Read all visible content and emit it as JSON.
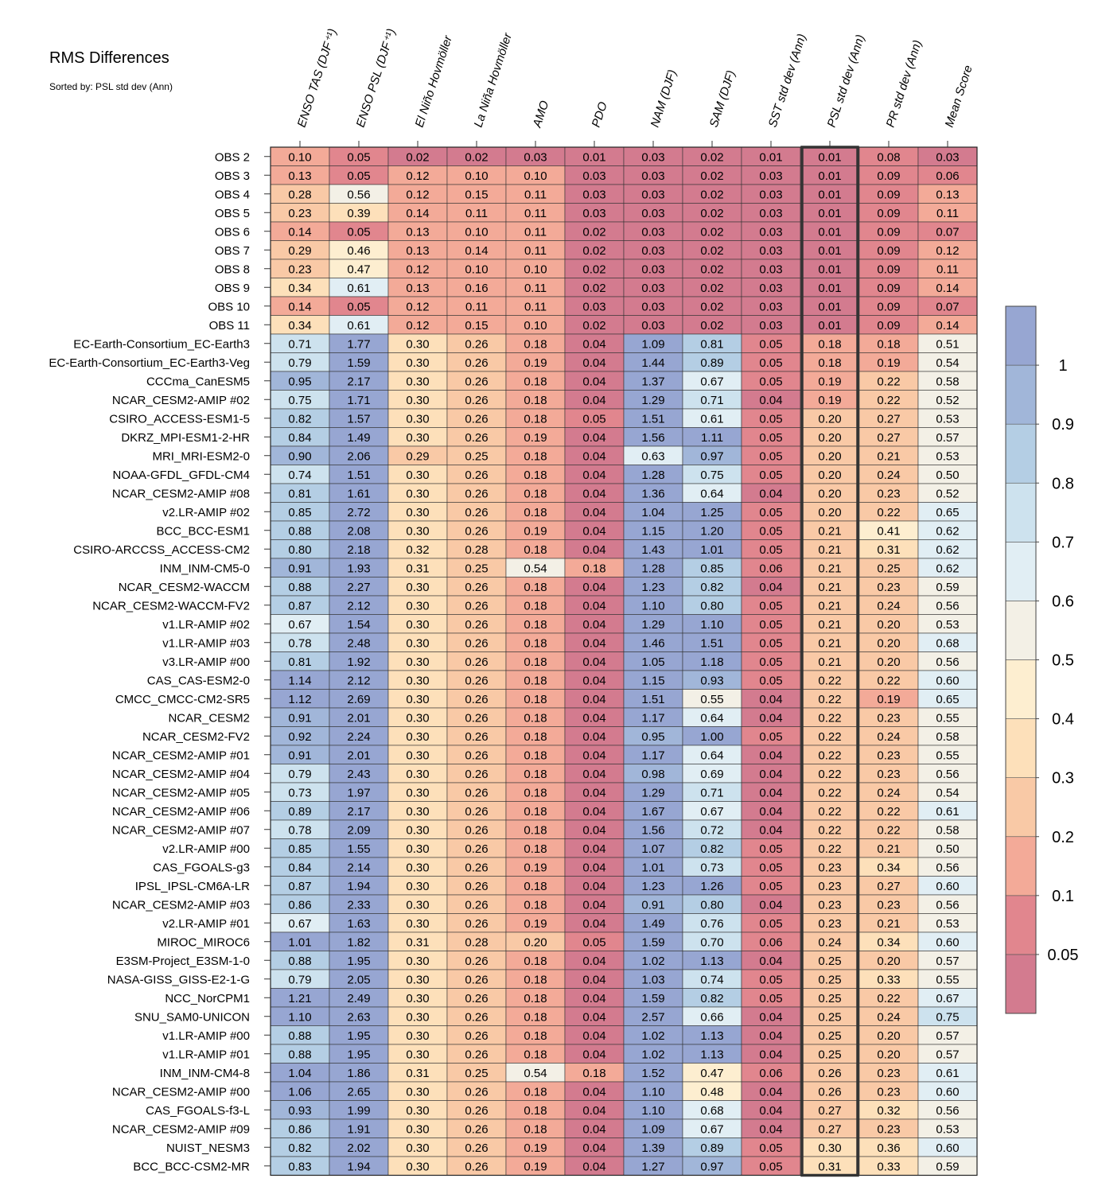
{
  "chart_data": {
    "type": "heatmap",
    "title": "RMS Differences",
    "subtitle": "Sorted by: PSL std dev (Ann)",
    "columns": [
      "ENSO TAS (DJF⁺¹)",
      "ENSO PSL (DJF⁺¹)",
      "El Niño Hovmöller",
      "La Niña Hovmöller",
      "AMO",
      "PDO",
      "NAM (DJF)",
      "SAM (DJF)",
      "SST std dev (Ann)",
      "PSL std dev (Ann)",
      "PR std dev (Ann)",
      "Mean Score"
    ],
    "highlighted_column": "PSL std dev (Ann)",
    "rows": [
      {
        "label": "OBS 2",
        "values": [
          0.1,
          0.05,
          0.02,
          0.02,
          0.03,
          0.01,
          0.03,
          0.02,
          0.01,
          0.01,
          0.08,
          0.03
        ]
      },
      {
        "label": "OBS 3",
        "values": [
          0.13,
          0.05,
          0.12,
          0.1,
          0.1,
          0.03,
          0.03,
          0.02,
          0.03,
          0.01,
          0.09,
          0.06
        ]
      },
      {
        "label": "OBS 4",
        "values": [
          0.28,
          0.56,
          0.12,
          0.15,
          0.11,
          0.03,
          0.03,
          0.02,
          0.03,
          0.01,
          0.09,
          0.13
        ]
      },
      {
        "label": "OBS 5",
        "values": [
          0.23,
          0.39,
          0.14,
          0.11,
          0.11,
          0.03,
          0.03,
          0.02,
          0.03,
          0.01,
          0.09,
          0.11
        ]
      },
      {
        "label": "OBS 6",
        "values": [
          0.14,
          0.05,
          0.13,
          0.1,
          0.11,
          0.02,
          0.03,
          0.02,
          0.03,
          0.01,
          0.09,
          0.07
        ]
      },
      {
        "label": "OBS 7",
        "values": [
          0.29,
          0.46,
          0.13,
          0.14,
          0.11,
          0.02,
          0.03,
          0.02,
          0.03,
          0.01,
          0.09,
          0.12
        ]
      },
      {
        "label": "OBS 8",
        "values": [
          0.23,
          0.47,
          0.12,
          0.1,
          0.1,
          0.02,
          0.03,
          0.02,
          0.03,
          0.01,
          0.09,
          0.11
        ]
      },
      {
        "label": "OBS 9",
        "values": [
          0.34,
          0.61,
          0.13,
          0.16,
          0.11,
          0.02,
          0.03,
          0.02,
          0.03,
          0.01,
          0.09,
          0.14
        ]
      },
      {
        "label": "OBS 10",
        "values": [
          0.14,
          0.05,
          0.12,
          0.11,
          0.11,
          0.03,
          0.03,
          0.02,
          0.03,
          0.01,
          0.09,
          0.07
        ]
      },
      {
        "label": "OBS 11",
        "values": [
          0.34,
          0.61,
          0.12,
          0.15,
          0.1,
          0.02,
          0.03,
          0.02,
          0.03,
          0.01,
          0.09,
          0.14
        ]
      },
      {
        "label": "EC-Earth-Consortium_EC-Earth3",
        "values": [
          0.71,
          1.77,
          0.3,
          0.26,
          0.18,
          0.04,
          1.09,
          0.81,
          0.05,
          0.18,
          0.18,
          0.51
        ]
      },
      {
        "label": "EC-Earth-Consortium_EC-Earth3-Veg",
        "values": [
          0.79,
          1.59,
          0.3,
          0.26,
          0.19,
          0.04,
          1.44,
          0.89,
          0.05,
          0.18,
          0.19,
          0.54
        ]
      },
      {
        "label": "CCCma_CanESM5",
        "values": [
          0.95,
          2.17,
          0.3,
          0.26,
          0.18,
          0.04,
          1.37,
          0.67,
          0.05,
          0.19,
          0.22,
          0.58
        ]
      },
      {
        "label": "NCAR_CESM2-AMIP  #02",
        "values": [
          0.75,
          1.71,
          0.3,
          0.26,
          0.18,
          0.04,
          1.29,
          0.71,
          0.04,
          0.19,
          0.22,
          0.52
        ]
      },
      {
        "label": "CSIRO_ACCESS-ESM1-5",
        "values": [
          0.82,
          1.57,
          0.3,
          0.26,
          0.18,
          0.05,
          1.51,
          0.61,
          0.05,
          0.2,
          0.27,
          0.53
        ]
      },
      {
        "label": "DKRZ_MPI-ESM1-2-HR",
        "values": [
          0.84,
          1.49,
          0.3,
          0.26,
          0.19,
          0.04,
          1.56,
          1.11,
          0.05,
          0.2,
          0.27,
          0.57
        ]
      },
      {
        "label": "MRI_MRI-ESM2-0",
        "values": [
          0.9,
          2.06,
          0.29,
          0.25,
          0.18,
          0.04,
          0.63,
          0.97,
          0.05,
          0.2,
          0.21,
          0.53
        ]
      },
      {
        "label": "NOAA-GFDL_GFDL-CM4",
        "values": [
          0.74,
          1.51,
          0.3,
          0.26,
          0.18,
          0.04,
          1.28,
          0.75,
          0.05,
          0.2,
          0.24,
          0.5
        ]
      },
      {
        "label": "NCAR_CESM2-AMIP  #08",
        "values": [
          0.81,
          1.61,
          0.3,
          0.26,
          0.18,
          0.04,
          1.36,
          0.64,
          0.04,
          0.2,
          0.23,
          0.52
        ]
      },
      {
        "label": "v2.LR-AMIP  #02",
        "values": [
          0.85,
          2.72,
          0.3,
          0.26,
          0.18,
          0.04,
          1.04,
          1.25,
          0.05,
          0.2,
          0.22,
          0.65
        ]
      },
      {
        "label": "BCC_BCC-ESM1",
        "values": [
          0.88,
          2.08,
          0.3,
          0.26,
          0.19,
          0.04,
          1.15,
          1.2,
          0.05,
          0.21,
          0.41,
          0.62
        ]
      },
      {
        "label": "CSIRO-ARCCSS_ACCESS-CM2",
        "values": [
          0.8,
          2.18,
          0.32,
          0.28,
          0.18,
          0.04,
          1.43,
          1.01,
          0.05,
          0.21,
          0.31,
          0.62
        ]
      },
      {
        "label": "INM_INM-CM5-0",
        "values": [
          0.91,
          1.93,
          0.31,
          0.25,
          0.54,
          0.18,
          1.28,
          0.85,
          0.06,
          0.21,
          0.25,
          0.62
        ]
      },
      {
        "label": "NCAR_CESM2-WACCM",
        "values": [
          0.88,
          2.27,
          0.3,
          0.26,
          0.18,
          0.04,
          1.23,
          0.82,
          0.04,
          0.21,
          0.23,
          0.59
        ]
      },
      {
        "label": "NCAR_CESM2-WACCM-FV2",
        "values": [
          0.87,
          2.12,
          0.3,
          0.26,
          0.18,
          0.04,
          1.1,
          0.8,
          0.05,
          0.21,
          0.24,
          0.56
        ]
      },
      {
        "label": "v1.LR-AMIP  #02",
        "values": [
          0.67,
          1.54,
          0.3,
          0.26,
          0.18,
          0.04,
          1.29,
          1.1,
          0.05,
          0.21,
          0.2,
          0.53
        ]
      },
      {
        "label": "v1.LR-AMIP  #03",
        "values": [
          0.78,
          2.48,
          0.3,
          0.26,
          0.18,
          0.04,
          1.46,
          1.51,
          0.05,
          0.21,
          0.2,
          0.68
        ]
      },
      {
        "label": "v3.LR-AMIP  #00",
        "values": [
          0.81,
          1.92,
          0.3,
          0.26,
          0.18,
          0.04,
          1.05,
          1.18,
          0.05,
          0.21,
          0.2,
          0.56
        ]
      },
      {
        "label": "CAS_CAS-ESM2-0",
        "values": [
          1.14,
          2.12,
          0.3,
          0.26,
          0.18,
          0.04,
          1.15,
          0.93,
          0.05,
          0.22,
          0.22,
          0.6
        ]
      },
      {
        "label": "CMCC_CMCC-CM2-SR5",
        "values": [
          1.12,
          2.69,
          0.3,
          0.26,
          0.18,
          0.04,
          1.51,
          0.55,
          0.04,
          0.22,
          0.19,
          0.65
        ]
      },
      {
        "label": "NCAR_CESM2",
        "values": [
          0.91,
          2.01,
          0.3,
          0.26,
          0.18,
          0.04,
          1.17,
          0.64,
          0.04,
          0.22,
          0.23,
          0.55
        ]
      },
      {
        "label": "NCAR_CESM2-FV2",
        "values": [
          0.92,
          2.24,
          0.3,
          0.26,
          0.18,
          0.04,
          0.95,
          1.0,
          0.05,
          0.22,
          0.24,
          0.58
        ]
      },
      {
        "label": "NCAR_CESM2-AMIP  #01",
        "values": [
          0.91,
          2.01,
          0.3,
          0.26,
          0.18,
          0.04,
          1.17,
          0.64,
          0.04,
          0.22,
          0.23,
          0.55
        ]
      },
      {
        "label": "NCAR_CESM2-AMIP  #04",
        "values": [
          0.79,
          2.43,
          0.3,
          0.26,
          0.18,
          0.04,
          0.98,
          0.69,
          0.04,
          0.22,
          0.23,
          0.56
        ]
      },
      {
        "label": "NCAR_CESM2-AMIP  #05",
        "values": [
          0.73,
          1.97,
          0.3,
          0.26,
          0.18,
          0.04,
          1.29,
          0.71,
          0.04,
          0.22,
          0.24,
          0.54
        ]
      },
      {
        "label": "NCAR_CESM2-AMIP  #06",
        "values": [
          0.89,
          2.17,
          0.3,
          0.26,
          0.18,
          0.04,
          1.67,
          0.67,
          0.04,
          0.22,
          0.22,
          0.61
        ]
      },
      {
        "label": "NCAR_CESM2-AMIP  #07",
        "values": [
          0.78,
          2.09,
          0.3,
          0.26,
          0.18,
          0.04,
          1.56,
          0.72,
          0.04,
          0.22,
          0.22,
          0.58
        ]
      },
      {
        "label": "v2.LR-AMIP  #00",
        "values": [
          0.85,
          1.55,
          0.3,
          0.26,
          0.18,
          0.04,
          1.07,
          0.82,
          0.05,
          0.22,
          0.21,
          0.5
        ]
      },
      {
        "label": "CAS_FGOALS-g3",
        "values": [
          0.84,
          2.14,
          0.3,
          0.26,
          0.19,
          0.04,
          1.01,
          0.73,
          0.05,
          0.23,
          0.34,
          0.56
        ]
      },
      {
        "label": "IPSL_IPSL-CM6A-LR",
        "values": [
          0.87,
          1.94,
          0.3,
          0.26,
          0.18,
          0.04,
          1.23,
          1.26,
          0.05,
          0.23,
          0.27,
          0.6
        ]
      },
      {
        "label": "NCAR_CESM2-AMIP  #03",
        "values": [
          0.86,
          2.33,
          0.3,
          0.26,
          0.18,
          0.04,
          0.91,
          0.8,
          0.04,
          0.23,
          0.23,
          0.56
        ]
      },
      {
        "label": "v2.LR-AMIP  #01",
        "values": [
          0.67,
          1.63,
          0.3,
          0.26,
          0.19,
          0.04,
          1.49,
          0.76,
          0.05,
          0.23,
          0.21,
          0.53
        ]
      },
      {
        "label": "MIROC_MIROC6",
        "values": [
          1.01,
          1.82,
          0.31,
          0.28,
          0.2,
          0.05,
          1.59,
          0.7,
          0.06,
          0.24,
          0.34,
          0.6
        ]
      },
      {
        "label": "E3SM-Project_E3SM-1-0",
        "values": [
          0.88,
          1.95,
          0.3,
          0.26,
          0.18,
          0.04,
          1.02,
          1.13,
          0.04,
          0.25,
          0.2,
          0.57
        ]
      },
      {
        "label": "NASA-GISS_GISS-E2-1-G",
        "values": [
          0.79,
          2.05,
          0.3,
          0.26,
          0.18,
          0.04,
          1.03,
          0.74,
          0.05,
          0.25,
          0.33,
          0.55
        ]
      },
      {
        "label": "NCC_NorCPM1",
        "values": [
          1.21,
          2.49,
          0.3,
          0.26,
          0.18,
          0.04,
          1.59,
          0.82,
          0.05,
          0.25,
          0.22,
          0.67
        ]
      },
      {
        "label": "SNU_SAM0-UNICON",
        "values": [
          1.1,
          2.63,
          0.3,
          0.26,
          0.18,
          0.04,
          2.57,
          0.66,
          0.04,
          0.25,
          0.24,
          0.75
        ]
      },
      {
        "label": "v1.LR-AMIP  #00",
        "values": [
          0.88,
          1.95,
          0.3,
          0.26,
          0.18,
          0.04,
          1.02,
          1.13,
          0.04,
          0.25,
          0.2,
          0.57
        ]
      },
      {
        "label": "v1.LR-AMIP  #01",
        "values": [
          0.88,
          1.95,
          0.3,
          0.26,
          0.18,
          0.04,
          1.02,
          1.13,
          0.04,
          0.25,
          0.2,
          0.57
        ]
      },
      {
        "label": "INM_INM-CM4-8",
        "values": [
          1.04,
          1.86,
          0.31,
          0.25,
          0.54,
          0.18,
          1.52,
          0.47,
          0.06,
          0.26,
          0.23,
          0.61
        ]
      },
      {
        "label": "NCAR_CESM2-AMIP  #00",
        "values": [
          1.06,
          2.65,
          0.3,
          0.26,
          0.18,
          0.04,
          1.1,
          0.48,
          0.04,
          0.26,
          0.23,
          0.6
        ]
      },
      {
        "label": "CAS_FGOALS-f3-L",
        "values": [
          0.93,
          1.99,
          0.3,
          0.26,
          0.18,
          0.04,
          1.1,
          0.68,
          0.04,
          0.27,
          0.32,
          0.56
        ]
      },
      {
        "label": "NCAR_CESM2-AMIP  #09",
        "values": [
          0.86,
          1.91,
          0.3,
          0.26,
          0.18,
          0.04,
          1.09,
          0.67,
          0.04,
          0.27,
          0.23,
          0.53
        ]
      },
      {
        "label": "NUIST_NESM3",
        "values": [
          0.82,
          2.02,
          0.3,
          0.26,
          0.19,
          0.04,
          1.39,
          0.89,
          0.05,
          0.3,
          0.36,
          0.6
        ]
      },
      {
        "label": "BCC_BCC-CSM2-MR",
        "values": [
          0.83,
          1.94,
          0.3,
          0.26,
          0.19,
          0.04,
          1.27,
          0.97,
          0.05,
          0.31,
          0.33,
          0.59
        ]
      }
    ],
    "colorbar": {
      "bounds": [
        0.05,
        0.1,
        0.2,
        0.3,
        0.4,
        0.5,
        0.6,
        0.7,
        0.8,
        0.9,
        1
      ],
      "tick_labels": [
        "0.05",
        "0.1",
        "0.2",
        "0.3",
        "0.4",
        "0.5",
        "0.6",
        "0.7",
        "0.8",
        "0.9",
        "1"
      ],
      "colors": [
        "#d37b8f",
        "#e1868e",
        "#f3aa98",
        "#f9c9a6",
        "#fde0ba",
        "#fdeed0",
        "#f3f0e6",
        "#e1eef4",
        "#cde2ee",
        "#b4cee4",
        "#a1b6d9",
        "#97a6d2"
      ]
    }
  }
}
